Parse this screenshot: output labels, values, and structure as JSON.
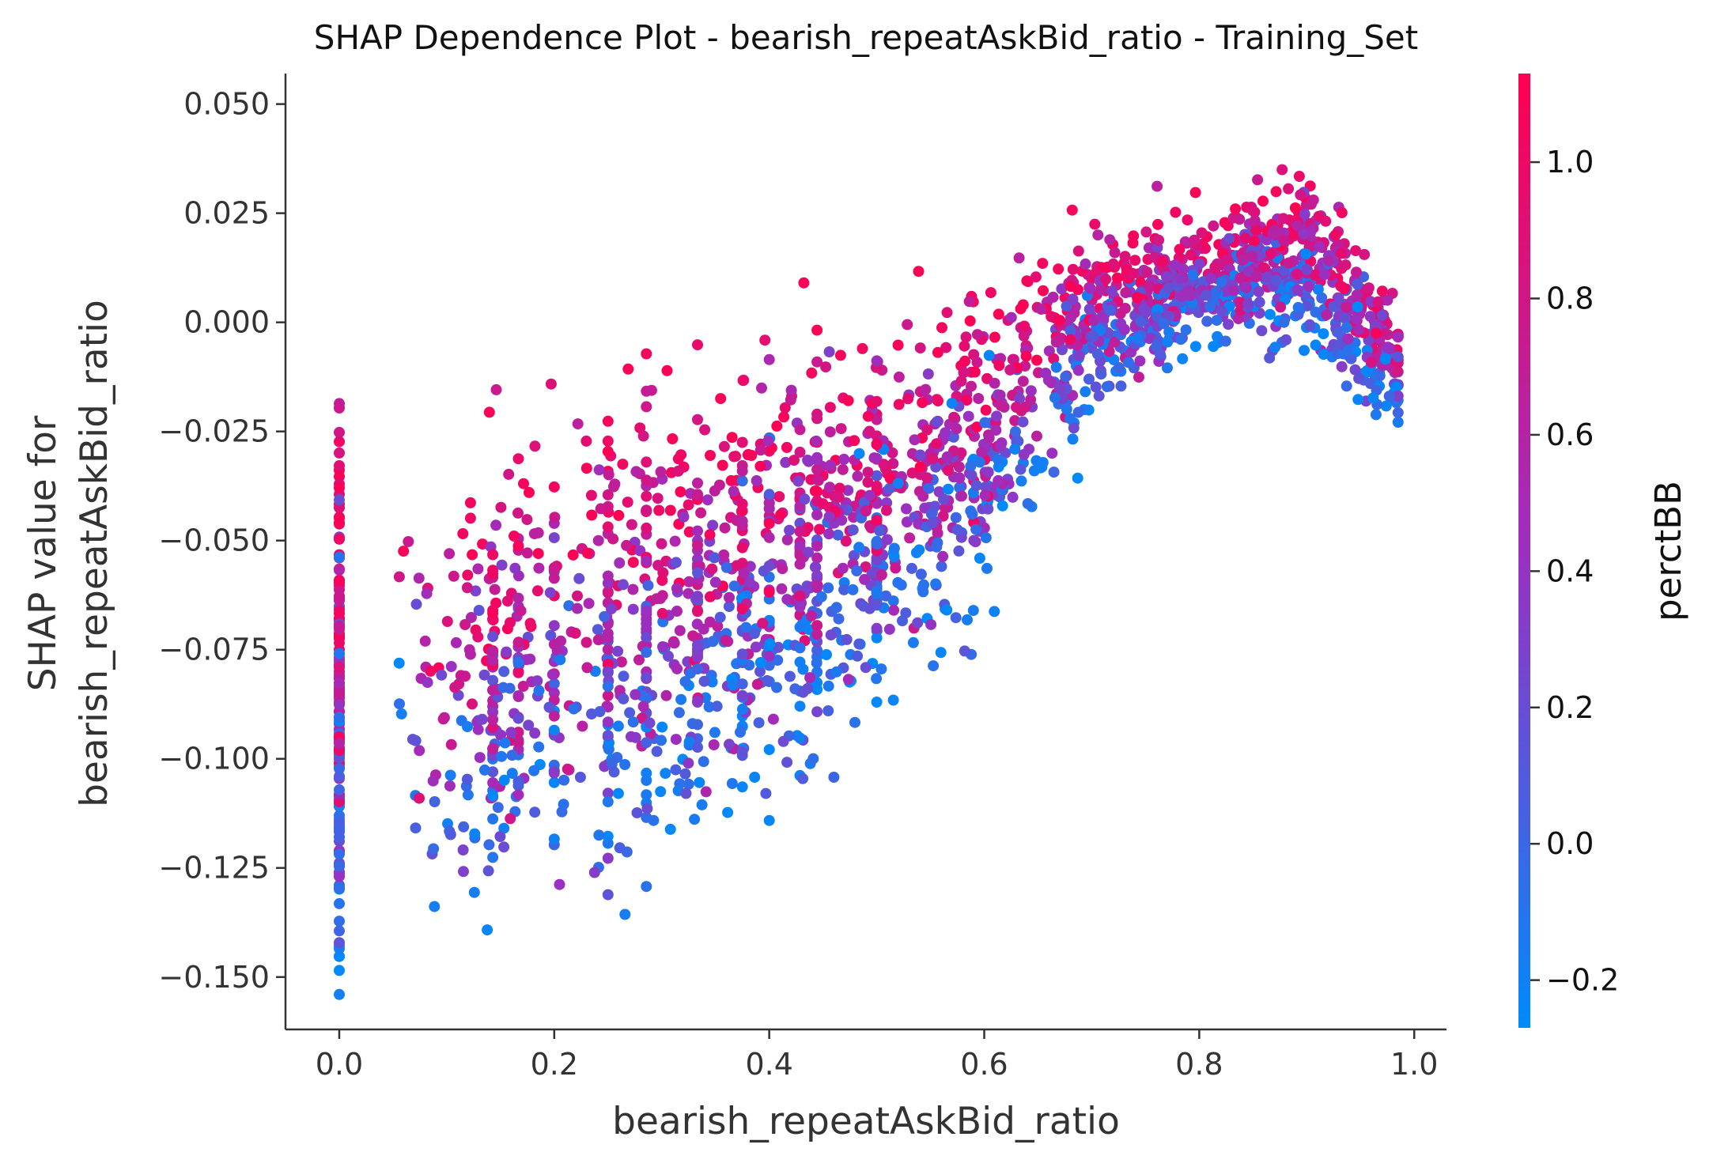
{
  "chart_data": {
    "type": "scatter",
    "title": "SHAP Dependence Plot - bearish_repeatAskBid_ratio - Training_Set",
    "xlabel": "bearish_repeatAskBid_ratio",
    "ylabel_line1": "SHAP value for",
    "ylabel_line2": "bearish_repeatAskBid_ratio",
    "xlim": [
      -0.05,
      1.03
    ],
    "ylim": [
      -0.162,
      0.057
    ],
    "x_ticks": [
      0.0,
      0.2,
      0.4,
      0.6,
      0.8,
      1.0
    ],
    "x_tick_labels": [
      "0.0",
      "0.2",
      "0.4",
      "0.6",
      "0.8",
      "1.0"
    ],
    "y_ticks": [
      0.05,
      0.025,
      0.0,
      -0.025,
      -0.05,
      -0.075,
      -0.1,
      -0.125,
      -0.15
    ],
    "y_tick_labels": [
      "0.050",
      "0.025",
      "0.000",
      "−0.025",
      "−0.050",
      "−0.075",
      "−0.100",
      "−0.125",
      "−0.150"
    ],
    "colorbar": {
      "label": "perctBB",
      "range": [
        -0.27,
        1.13
      ],
      "ticks": [
        1.0,
        0.8,
        0.6,
        0.4,
        0.2,
        0.0,
        -0.2
      ],
      "tick_labels": [
        "1.0",
        "0.8",
        "0.6",
        "0.4",
        "0.2",
        "0.0",
        "−0.2"
      ],
      "color_low": "#008afb",
      "color_mid": "#9c2fc0",
      "color_high": "#ff0052"
    },
    "grid": false,
    "legend": "colorbar-right",
    "trend": {
      "description_points_x": [
        0.0,
        0.1,
        0.2,
        0.3,
        0.4,
        0.5,
        0.6,
        0.7,
        0.8,
        0.9,
        0.95,
        0.985
      ],
      "mean_y": [
        -0.09,
        -0.085,
        -0.08,
        -0.072,
        -0.06,
        -0.045,
        -0.03,
        0.0,
        0.01,
        0.015,
        0.0,
        -0.01
      ],
      "spread": [
        0.06,
        0.05,
        0.055,
        0.05,
        0.045,
        0.04,
        0.035,
        0.02,
        0.015,
        0.02,
        0.02,
        0.012
      ]
    }
  }
}
